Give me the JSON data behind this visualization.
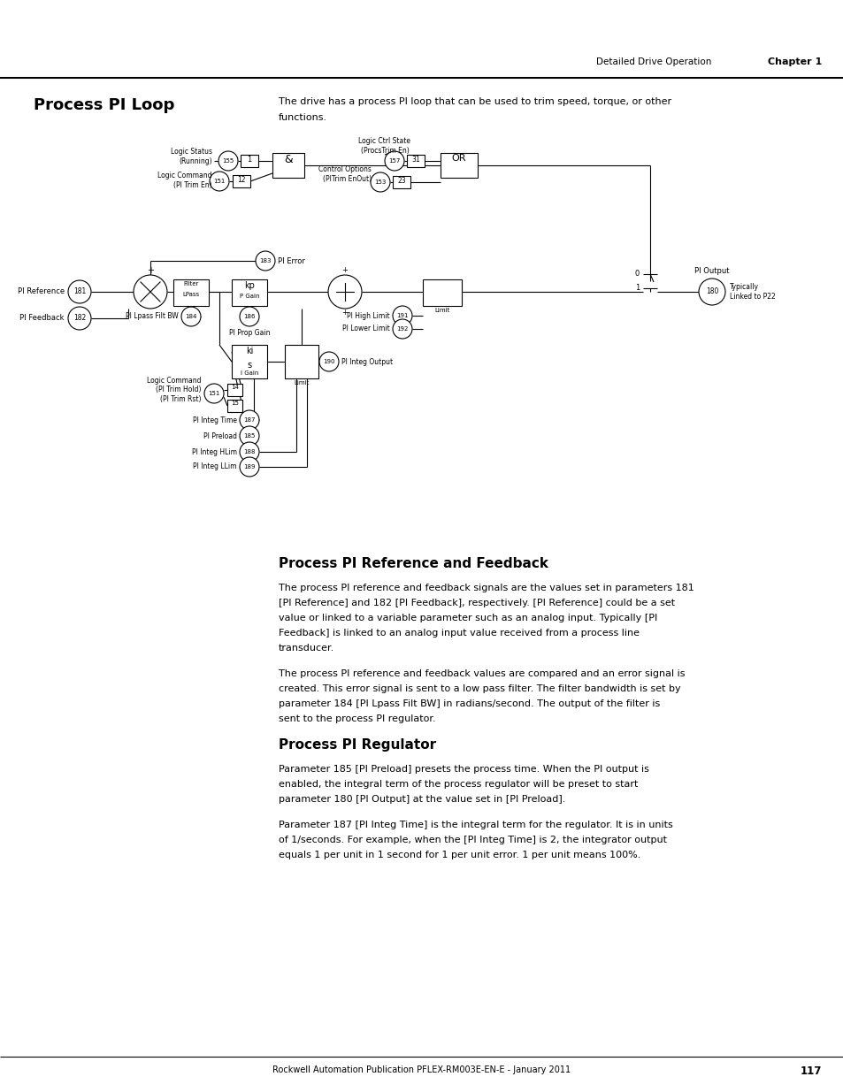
{
  "page_title_right": "Detailed Drive Operation",
  "page_chapter": "Chapter 1",
  "section1_title": "Process PI Loop",
  "section1_intro_line1": "The drive has a process PI loop that can be used to trim speed, torque, or other",
  "section1_intro_line2": "functions.",
  "section2_title": "Process PI Reference and Feedback",
  "section2_p1_lines": [
    "The process PI reference and feedback signals are the values set in parameters 181",
    "[PI Reference] and 182 [PI Feedback], respectively. [PI Reference] could be a set",
    "value or linked to a variable parameter such as an analog input. Typically [PI",
    "Feedback] is linked to an analog input value received from a process line",
    "transducer."
  ],
  "section2_p2_lines": [
    "The process PI reference and feedback values are compared and an error signal is",
    "created. This error signal is sent to a low pass filter. The filter bandwidth is set by",
    "parameter 184 [PI Lpass Filt BW] in radians/second. The output of the filter is",
    "sent to the process PI regulator."
  ],
  "section3_title": "Process PI Regulator",
  "section3_p1_lines": [
    "Parameter 185 [PI Preload] presets the process time. When the PI output is",
    "enabled, the integral term of the process regulator will be preset to start",
    "parameter 180 [PI Output] at the value set in [PI Preload]."
  ],
  "section3_p2_lines": [
    "Parameter 187 [PI Integ Time] is the integral term for the regulator. It is in units",
    "of 1/seconds. For example, when the [PI Integ Time] is 2, the integrator output",
    "equals 1 per unit in 1 second for 1 per unit error. 1 per unit means 100%."
  ],
  "footer_text": "Rockwell Automation Publication PFLEX-RM003E-EN-E - January 2011",
  "footer_page": "117"
}
